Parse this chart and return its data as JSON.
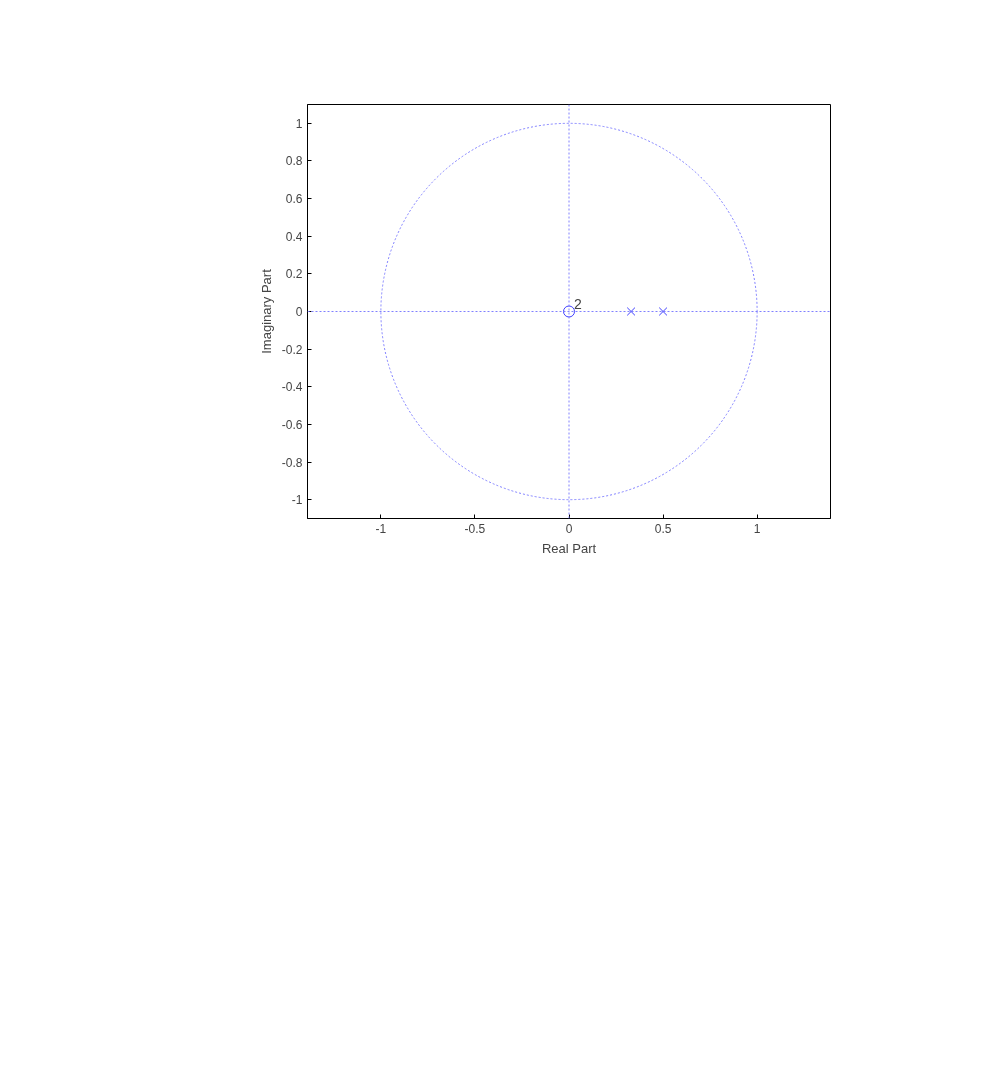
{
  "chart_data": {
    "type": "scatter",
    "xlabel": "Real Part",
    "ylabel": "Imaginary Part",
    "xlim": [
      -1.39,
      1.39
    ],
    "ylim": [
      -1.1,
      1.1
    ],
    "xticks": [
      -1,
      -0.5,
      0,
      0.5,
      1
    ],
    "yticks": [
      -1,
      -0.8,
      -0.6,
      -0.4,
      -0.2,
      0,
      0.2,
      0.4,
      0.6,
      0.8,
      1
    ],
    "series": [
      {
        "marker": "circle",
        "color": "#4040ff",
        "x": [
          0
        ],
        "values": [
          0
        ]
      },
      {
        "marker": "cross",
        "color": "#4040ff",
        "x": [
          0.33,
          0.5
        ],
        "values": [
          0,
          0
        ]
      }
    ],
    "annotations": [
      {
        "text": "2",
        "x": 0,
        "y": 0
      }
    ]
  }
}
